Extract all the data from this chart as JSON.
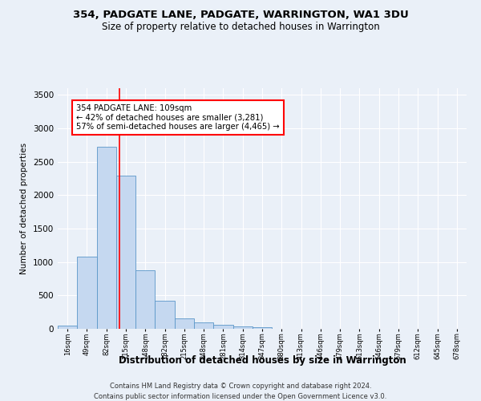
{
  "title1": "354, PADGATE LANE, PADGATE, WARRINGTON, WA1 3DU",
  "title2": "Size of property relative to detached houses in Warrington",
  "xlabel": "Distribution of detached houses by size in Warrington",
  "ylabel": "Number of detached properties",
  "bar_color": "#c5d8f0",
  "bar_edge_color": "#5a96c8",
  "categories": [
    "16sqm",
    "49sqm",
    "82sqm",
    "115sqm",
    "148sqm",
    "182sqm",
    "215sqm",
    "248sqm",
    "281sqm",
    "314sqm",
    "347sqm",
    "380sqm",
    "413sqm",
    "446sqm",
    "479sqm",
    "513sqm",
    "546sqm",
    "579sqm",
    "612sqm",
    "645sqm",
    "678sqm"
  ],
  "values": [
    50,
    1080,
    2730,
    2290,
    880,
    420,
    160,
    100,
    60,
    40,
    30,
    0,
    0,
    0,
    0,
    0,
    0,
    0,
    0,
    0,
    0
  ],
  "ylim": [
    0,
    3600
  ],
  "yticks": [
    0,
    500,
    1000,
    1500,
    2000,
    2500,
    3000,
    3500
  ],
  "annotation_text": "354 PADGATE LANE: 109sqm\n← 42% of detached houses are smaller (3,281)\n57% of semi-detached houses are larger (4,465) →",
  "vline_x": 2.65,
  "bg_color": "#eaf0f8",
  "grid_color": "#ffffff",
  "footnote1": "Contains HM Land Registry data © Crown copyright and database right 2024.",
  "footnote2": "Contains public sector information licensed under the Open Government Licence v3.0."
}
